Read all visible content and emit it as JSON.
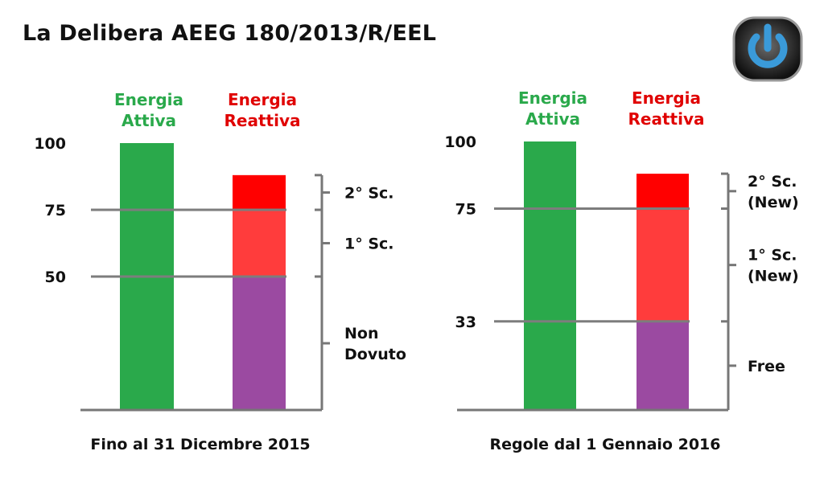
{
  "title": "La Delibera AEEG 180/2013/R/EEL",
  "logo": {
    "icon": "power-button-icon",
    "color": "#3a9ad9"
  },
  "colors": {
    "attiva": "#2aa94b",
    "non_dovuto": "#9b4aa1",
    "first_sc": "#ff3c3c",
    "second_sc": "#ff0000",
    "axis": "#777777",
    "ref_line": "#7d7d7d"
  },
  "chart_data": [
    {
      "type": "bar",
      "stacked": true,
      "caption": "Fino al 31 Dicembre 2015",
      "categories": [
        "Energia Attiva",
        "Energia Reattiva"
      ],
      "legend": [
        {
          "line1": "Energia",
          "line2": "Attiva",
          "color": "#2aa94b"
        },
        {
          "line1": "Energia",
          "line2": "Reattiva",
          "color": "#e00000"
        }
      ],
      "y_ticks": [
        100,
        75,
        50
      ],
      "y_tick_labels": [
        "100",
        "75",
        "50"
      ],
      "ylim": [
        0,
        100
      ],
      "reference_lines": [
        75,
        50
      ],
      "attiva_value": 100,
      "reattiva_segments": [
        {
          "from": 0,
          "to": 50,
          "color": "#9b4aa1",
          "label": "Non Dovuto"
        },
        {
          "from": 50,
          "to": 75,
          "color": "#ff3c3c",
          "label": "1° Sc."
        },
        {
          "from": 75,
          "to": 88,
          "color": "#ff0000",
          "label": "2° Sc."
        }
      ],
      "brackets": [
        {
          "from": 88,
          "to": 75,
          "label_lines": [
            "2° Sc."
          ]
        },
        {
          "from": 75,
          "to": 50,
          "label_lines": [
            "1° Sc."
          ]
        },
        {
          "from": 50,
          "to": 0,
          "label_lines": [
            "Non",
            "Dovuto"
          ]
        }
      ]
    },
    {
      "type": "bar",
      "stacked": true,
      "caption": "Regole dal 1 Gennaio 2016",
      "categories": [
        "Energia Attiva",
        "Energia Reattiva"
      ],
      "legend": [
        {
          "line1": "Energia",
          "line2": "Attiva",
          "color": "#2aa94b"
        },
        {
          "line1": "Energia",
          "line2": "Reattiva",
          "color": "#e00000"
        }
      ],
      "y_ticks": [
        100,
        75,
        33
      ],
      "y_tick_labels": [
        "100",
        "75",
        "33"
      ],
      "ylim": [
        0,
        100
      ],
      "reference_lines": [
        75,
        33
      ],
      "attiva_value": 100,
      "reattiva_segments": [
        {
          "from": 0,
          "to": 33,
          "color": "#9b4aa1",
          "label": "Free"
        },
        {
          "from": 33,
          "to": 75,
          "color": "#ff3c3c",
          "label": "1° Sc. (New)"
        },
        {
          "from": 75,
          "to": 88,
          "color": "#ff0000",
          "label": "2° Sc. (New)"
        }
      ],
      "brackets": [
        {
          "from": 88,
          "to": 75,
          "label_lines": [
            "2° Sc.",
            "(New)"
          ]
        },
        {
          "from": 75,
          "to": 33,
          "label_lines": [
            "1° Sc.",
            "(New)"
          ]
        },
        {
          "from": 33,
          "to": 0,
          "label_lines": [
            "Free"
          ]
        }
      ]
    }
  ]
}
